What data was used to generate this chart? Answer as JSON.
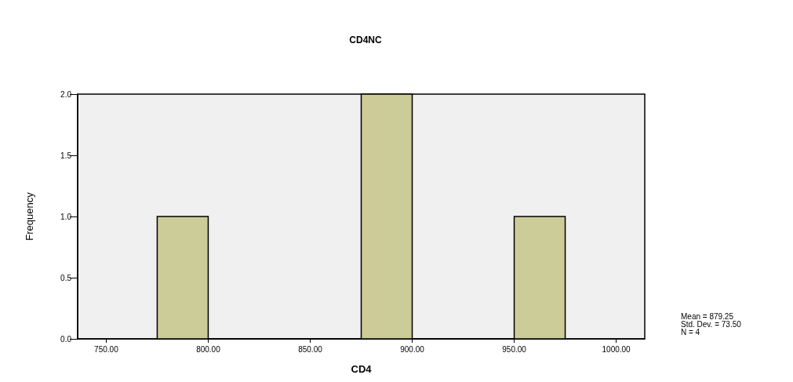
{
  "chart_data": {
    "type": "histogram",
    "title": "CD4NC",
    "xlabel": "CD4",
    "ylabel": "Frequency",
    "bins": [
      775,
      800,
      825,
      850,
      875,
      900,
      925,
      950,
      975
    ],
    "values": [
      1,
      0,
      0,
      0,
      2,
      0,
      0,
      1
    ],
    "color": "#cccc99",
    "xlim": [
      736,
      1014
    ],
    "xticks": [
      {
        "value": 750,
        "label": "750.00"
      },
      {
        "value": 800,
        "label": "800.00"
      },
      {
        "value": 850,
        "label": "850.00"
      },
      {
        "value": 900,
        "label": "900.00"
      },
      {
        "value": 950,
        "label": "950.00"
      },
      {
        "value": 1000,
        "label": "1000.00"
      }
    ],
    "ylim": [
      0,
      2
    ],
    "yticks": [
      {
        "value": 0,
        "label": "0.0"
      },
      {
        "value": 0.5,
        "label": "0.5"
      },
      {
        "value": 1,
        "label": "1.0"
      },
      {
        "value": 1.5,
        "label": "1.5"
      },
      {
        "value": 2,
        "label": "2.0"
      }
    ],
    "grid": false,
    "annotations": [
      "Mean = 879.25",
      "Std. Dev. = 73.50",
      "N = 4"
    ]
  }
}
